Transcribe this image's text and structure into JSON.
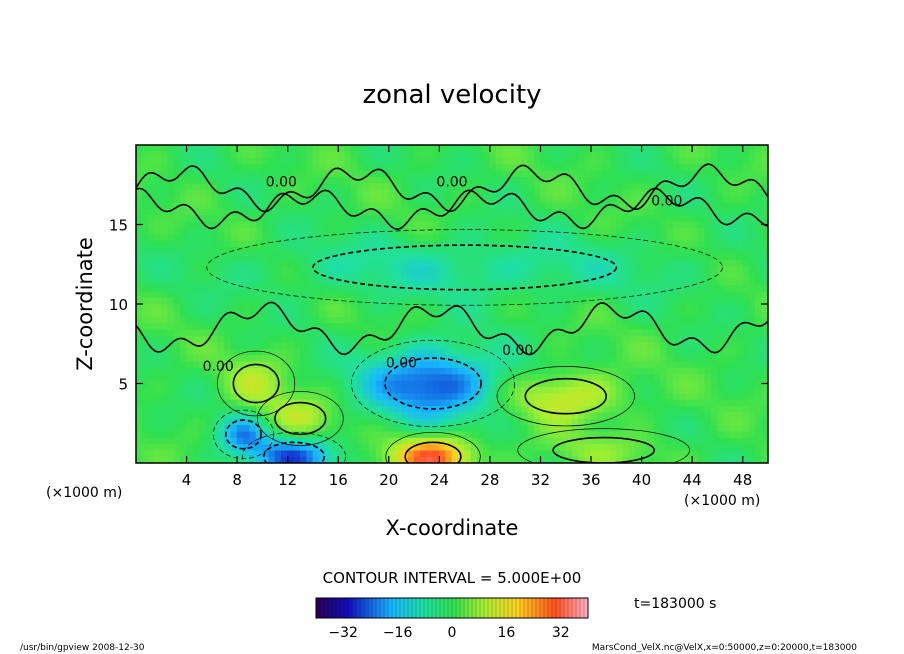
{
  "chart_data": {
    "type": "heatmap",
    "title": "zonal velocity",
    "xlabel": "X-coordinate",
    "ylabel": "Z-coordinate",
    "x_unit_left": "(×1000 m)",
    "x_unit_right": "(×1000 m)",
    "xlim": [
      0,
      50
    ],
    "ylim": [
      0,
      20
    ],
    "x_ticks": [
      4,
      8,
      12,
      16,
      20,
      24,
      28,
      32,
      36,
      40,
      44,
      48
    ],
    "y_ticks": [
      5,
      10,
      15
    ],
    "contour_interval_text": "CONTOUR INTERVAL = 5.000E+00",
    "contour_labels": [
      {
        "text": "0.00",
        "x": 11.5,
        "z": 17.4
      },
      {
        "text": "0.00",
        "x": 25.0,
        "z": 17.4
      },
      {
        "text": "0.00",
        "x": 42.0,
        "z": 16.2
      },
      {
        "text": "0.00",
        "x": 6.5,
        "z": 5.8
      },
      {
        "text": "0.00",
        "x": 21.0,
        "z": 6.0
      },
      {
        "text": "0.00",
        "x": 30.2,
        "z": 6.8
      }
    ],
    "features": [
      {
        "kind": "jet",
        "sign": "negative",
        "x": 23.5,
        "z": 5.0,
        "sx": 3.8,
        "sz": 1.6,
        "amp": -26
      },
      {
        "kind": "jet",
        "sign": "positive",
        "x": 34.0,
        "z": 4.2,
        "sx": 3.2,
        "sz": 1.1,
        "amp": 14
      },
      {
        "kind": "jet",
        "sign": "positive",
        "x": 23.5,
        "z": 0.4,
        "sx": 2.2,
        "sz": 0.9,
        "amp": 30
      },
      {
        "kind": "jet",
        "sign": "negative",
        "x": 12.5,
        "z": 0.4,
        "sx": 2.4,
        "sz": 0.9,
        "amp": -24
      },
      {
        "kind": "jet",
        "sign": "negative",
        "x": 8.5,
        "z": 1.8,
        "sx": 1.4,
        "sz": 0.9,
        "amp": -18
      },
      {
        "kind": "jet",
        "sign": "positive",
        "x": 13.0,
        "z": 2.8,
        "sx": 2.0,
        "sz": 1.0,
        "amp": 10
      },
      {
        "kind": "jet",
        "sign": "positive",
        "x": 9.5,
        "z": 5.0,
        "sx": 1.8,
        "sz": 1.2,
        "amp": 9
      },
      {
        "kind": "jet",
        "sign": "negative",
        "x": 26.0,
        "z": 12.3,
        "sx": 12.0,
        "sz": 1.4,
        "amp": -8
      },
      {
        "kind": "jet",
        "sign": "positive",
        "x": 37.0,
        "z": 0.8,
        "sx": 4.0,
        "sz": 0.8,
        "amp": 5
      }
    ],
    "colorbar": {
      "min": -40,
      "max": 40,
      "ticks": [
        -32,
        -16,
        0,
        16,
        32
      ],
      "tick_labels": [
        "−32",
        "−16",
        "0",
        "16",
        "32"
      ]
    },
    "time_label": "t=183000 s"
  },
  "footer": {
    "left": "/usr/bin/gpview   2008-12-30",
    "right": "MarsCond_VelX.nc@VelX,x=0:50000,z=0:20000,t=183000"
  }
}
